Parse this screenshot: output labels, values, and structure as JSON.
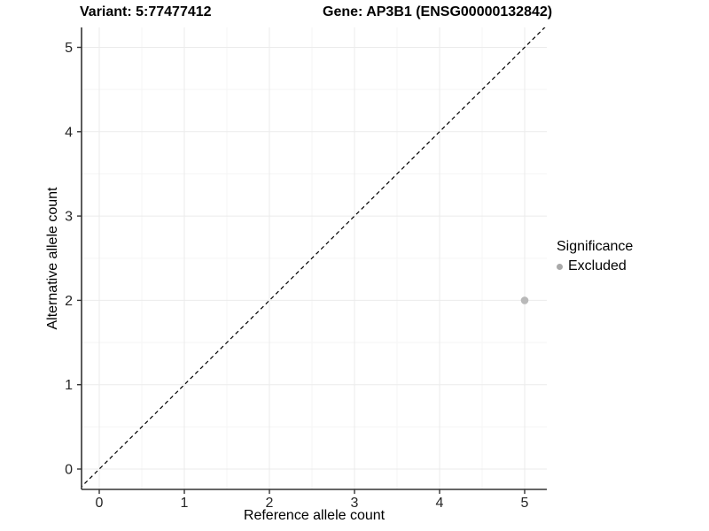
{
  "header": {
    "variant_title": "Variant: 5:77477412",
    "gene_title": "Gene: AP3B1 (ENSG00000132842)"
  },
  "chart_data": {
    "type": "scatter",
    "title": "Variant: 5:77477412    Gene: AP3B1 (ENSG00000132842)",
    "xlabel": "Reference allele count",
    "ylabel": "Alternative allele count",
    "xlim": [
      -0.21,
      5.26
    ],
    "ylim": [
      -0.24,
      5.24
    ],
    "xticks": [
      0,
      1,
      2,
      3,
      4,
      5
    ],
    "yticks": [
      0,
      1,
      2,
      3,
      4,
      5
    ],
    "xminor": [
      0.5,
      1.5,
      2.5,
      3.5,
      4.5
    ],
    "yminor": [
      0.5,
      1.5,
      2.5,
      3.5,
      4.5
    ],
    "grid": "major+minor",
    "legend_position": "right",
    "series": [
      {
        "name": "Excluded",
        "points": [
          {
            "x": 5,
            "y": 2
          }
        ],
        "color": "#b9b9b9"
      }
    ],
    "reference_line": {
      "slope": 1,
      "intercept": 0,
      "style": "dashed",
      "color": "#000000"
    },
    "legend": {
      "title": "Significance",
      "entries": [
        {
          "label": "Excluded",
          "color": "#a9a9a9"
        }
      ]
    },
    "colors": {
      "background": "#ffffff",
      "grid_major": "#ebebeb",
      "grid_minor": "#f5f5f5",
      "axis_line": "#333333",
      "tick_label": "#262626",
      "point": "#b9b9b9"
    }
  }
}
